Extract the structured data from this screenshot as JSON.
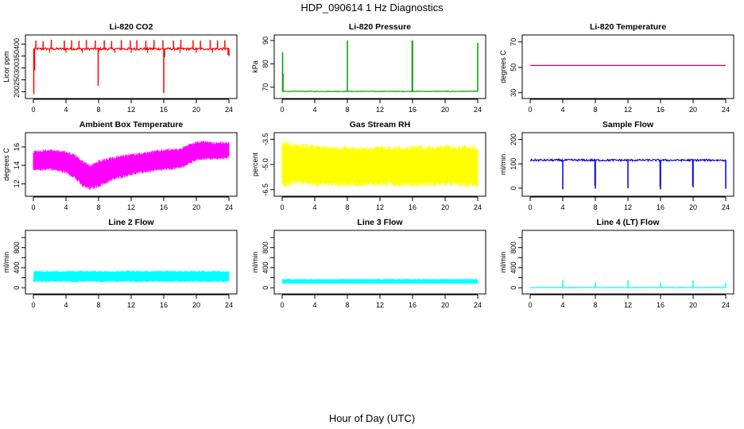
{
  "figure": {
    "title": "HDP_090614  1 Hz Diagnostics",
    "xlabel": "Hour of Day (UTC)"
  },
  "chart_data": [
    {
      "type": "line",
      "title": "Li-820 CO2",
      "ylabel": "Licor ppm",
      "xlim": [
        0,
        24
      ],
      "xticks": [
        0,
        4,
        8,
        12,
        16,
        20,
        24
      ],
      "ylim": [
        185,
        425
      ],
      "yticks": [
        200,
        250,
        300,
        350,
        400
      ],
      "color": "#ff0000",
      "series": [
        {
          "baseline": 380,
          "noise": 5,
          "spikes_up": [
            [
              0.3,
              415
            ],
            [
              1.2,
              412
            ],
            [
              2.2,
              418
            ],
            [
              3.8,
              415
            ],
            [
              4.7,
              416
            ],
            [
              5.6,
              414
            ],
            [
              6.5,
              417
            ],
            [
              7.6,
              415
            ],
            [
              8.7,
              416
            ],
            [
              9.6,
              413
            ],
            [
              10.8,
              417
            ],
            [
              11.9,
              415
            ],
            [
              12.7,
              416
            ],
            [
              13.8,
              414
            ],
            [
              14.8,
              417
            ],
            [
              15.9,
              416
            ],
            [
              17.2,
              415
            ],
            [
              18.1,
              418
            ],
            [
              19.6,
              416
            ],
            [
              20.5,
              414
            ],
            [
              21.7,
              417
            ],
            [
              22.6,
              415
            ],
            [
              23.5,
              416
            ]
          ],
          "spikes_down": [
            [
              0.05,
              190
            ],
            [
              0.15,
              290
            ],
            [
              7.95,
              225
            ],
            [
              16.0,
              195
            ],
            [
              16.1,
              345
            ],
            [
              23.9,
              355
            ],
            [
              24.0,
              350
            ]
          ],
          "dips": [
            2.0,
            4.0,
            6.0,
            8.0,
            10.0,
            12.0,
            14.0,
            16.0,
            18.0,
            20.0,
            22.0
          ]
        }
      ]
    },
    {
      "type": "line",
      "title": "Li-820 Pressure",
      "ylabel": "kPa",
      "xlim": [
        0,
        24
      ],
      "xticks": [
        0,
        4,
        8,
        12,
        16,
        20,
        24
      ],
      "ylim": [
        66.5,
        91
      ],
      "yticks": [
        70,
        80,
        90
      ],
      "color": "#00a000",
      "series": [
        {
          "baseline": 68.2,
          "noise": 0.12,
          "spikes_up": [
            [
              0.05,
              85
            ],
            [
              0.1,
              76
            ],
            [
              8.0,
              90
            ],
            [
              15.95,
              90
            ],
            [
              16.0,
              90
            ],
            [
              24.0,
              89
            ]
          ],
          "spikes_down": [],
          "dips": []
        }
      ]
    },
    {
      "type": "line",
      "title": "Li-820 Temperature",
      "ylabel": "degrees C",
      "xlim": [
        0,
        24
      ],
      "xticks": [
        0,
        4,
        8,
        12,
        16,
        20,
        24
      ],
      "ylim": [
        28,
        73
      ],
      "yticks": [
        30,
        50,
        70
      ],
      "color": "#cc0066",
      "series": [
        {
          "baseline": 51.5,
          "noise": 0,
          "spikes_up": [],
          "spikes_down": [],
          "dips": []
        }
      ]
    },
    {
      "type": "area",
      "title": "Ambient Box Temperature",
      "ylabel": "degrees C",
      "xlim": [
        0,
        24
      ],
      "xticks": [
        0,
        4,
        8,
        12,
        16,
        20,
        24
      ],
      "ylim": [
        11,
        17.2
      ],
      "yticks": [
        12,
        14,
        16
      ],
      "color": "#ff00ff",
      "envelope": {
        "x": [
          0,
          2,
          4,
          5,
          6,
          7,
          8,
          10,
          12,
          14,
          16,
          18,
          19,
          20,
          21,
          22,
          23,
          24
        ],
        "upper": [
          15.6,
          15.8,
          15.6,
          15.3,
          14.6,
          14.1,
          14.6,
          15.0,
          15.3,
          15.5,
          15.8,
          15.9,
          16.3,
          16.6,
          16.7,
          16.5,
          16.6,
          16.5
        ],
        "lower": [
          13.3,
          13.5,
          13.1,
          12.6,
          11.6,
          11.3,
          11.6,
          12.4,
          12.9,
          13.2,
          13.4,
          13.6,
          14.0,
          14.5,
          14.6,
          14.6,
          14.6,
          14.8
        ]
      }
    },
    {
      "type": "area",
      "title": "Gas Stream RH",
      "ylabel": "percent",
      "xlim": [
        0,
        24
      ],
      "xticks": [
        0,
        4,
        8,
        12,
        16,
        20,
        24
      ],
      "ylim": [
        -6.7,
        -3.3
      ],
      "yticks": [
        -3.5,
        -5.0,
        -6.5
      ],
      "ytick_labels": [
        "-3.5",
        "-5.0",
        "-6.5"
      ],
      "color": "#ffff00",
      "envelope": {
        "x": [
          0,
          2,
          4,
          8,
          12,
          16,
          20,
          24
        ],
        "upper": [
          -3.6,
          -3.75,
          -3.8,
          -3.9,
          -3.9,
          -3.85,
          -3.85,
          -3.85
        ],
        "lower": [
          -6.4,
          -6.2,
          -6.3,
          -6.35,
          -6.3,
          -6.35,
          -6.3,
          -6.4
        ]
      }
    },
    {
      "type": "line",
      "title": "Sample Flow",
      "ylabel": "ml/min",
      "xlim": [
        0,
        24
      ],
      "xticks": [
        0,
        4,
        8,
        12,
        16,
        20,
        24
      ],
      "ylim": [
        -20,
        215
      ],
      "yticks": [
        0,
        100,
        200
      ],
      "color": "#0000dd",
      "series": [
        {
          "baseline": 115,
          "noise": 4,
          "spikes_up": [],
          "spikes_down": [
            [
              4.0,
              -5
            ],
            [
              7.95,
              10
            ],
            [
              8.0,
              -2
            ],
            [
              12.0,
              0
            ],
            [
              15.95,
              5
            ],
            [
              16.0,
              -5
            ],
            [
              19.95,
              10
            ],
            [
              20.0,
              3
            ],
            [
              24.0,
              -2
            ]
          ],
          "dips": []
        }
      ]
    },
    {
      "type": "area",
      "title": "Line 2 Flow",
      "ylabel": "ml/min",
      "xlim": [
        0,
        24
      ],
      "xticks": [
        0,
        4,
        8,
        12,
        16,
        20,
        24
      ],
      "ylim": [
        -60,
        1080
      ],
      "yticks": [
        0,
        200,
        400,
        600,
        800,
        1000
      ],
      "ytick_labels": [
        "0",
        "",
        "400",
        "",
        "800",
        ""
      ],
      "color": "#00ffff",
      "envelope": {
        "x": [
          0,
          24
        ],
        "upper": [
          340,
          340
        ],
        "lower": [
          110,
          110
        ],
        "gaps": [
          4,
          8,
          12,
          16,
          20
        ]
      }
    },
    {
      "type": "area",
      "title": "Line 3 Flow",
      "ylabel": "ml/min",
      "xlim": [
        0,
        24
      ],
      "xticks": [
        0,
        4,
        8,
        12,
        16,
        20,
        24
      ],
      "ylim": [
        -60,
        1080
      ],
      "yticks": [
        0,
        200,
        400,
        600,
        800,
        1000
      ],
      "ytick_labels": [
        "0",
        "",
        "400",
        "",
        "800",
        ""
      ],
      "color": "#00ffff",
      "envelope": {
        "x": [
          0,
          24
        ],
        "upper": [
          175,
          175
        ],
        "lower": [
          80,
          80
        ],
        "gaps": [
          4,
          8,
          12,
          16,
          20
        ]
      }
    },
    {
      "type": "line",
      "title": "Line 4 (LT) Flow",
      "ylabel": "ml/min",
      "xlim": [
        0,
        24
      ],
      "xticks": [
        0,
        4,
        8,
        12,
        16,
        20,
        24
      ],
      "ylim": [
        -60,
        1080
      ],
      "yticks": [
        0,
        200,
        400,
        600,
        800,
        1000
      ],
      "ytick_labels": [
        "0",
        "",
        "400",
        "",
        "800",
        ""
      ],
      "color": "#00ffff",
      "series": [
        {
          "baseline": 5,
          "noise": 4,
          "spikes_up": [
            [
              4.0,
              150
            ],
            [
              8.0,
              100
            ],
            [
              12.0,
              150
            ],
            [
              16.0,
              100
            ],
            [
              20.0,
              150
            ],
            [
              24.0,
              100
            ]
          ],
          "spikes_down": [],
          "dips": []
        }
      ]
    }
  ]
}
